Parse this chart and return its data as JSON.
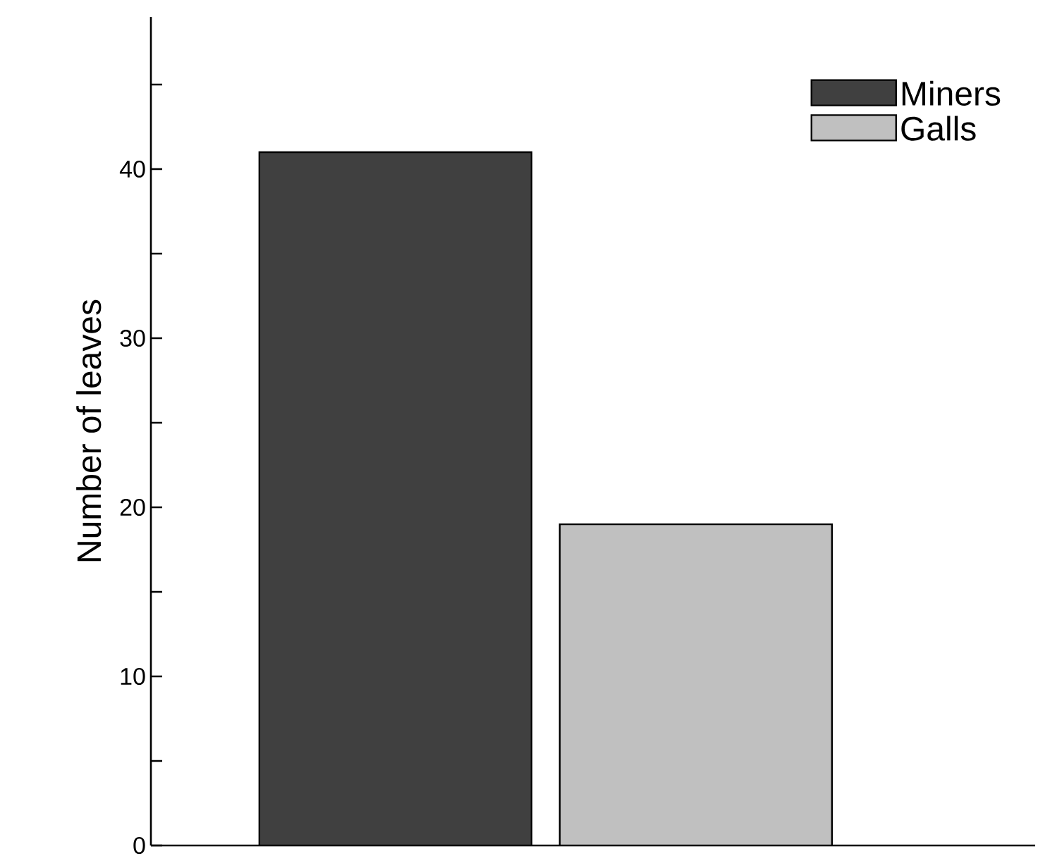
{
  "chart_data": {
    "type": "bar",
    "ylabel": "Number of leaves",
    "categories": [
      null
    ],
    "series": [
      {
        "name": "Miners",
        "color": "#404040",
        "values": [
          41
        ]
      },
      {
        "name": "Galls",
        "color": "#c0c0c0",
        "values": [
          19
        ]
      }
    ],
    "ylim": [
      0,
      49
    ],
    "yticks": [
      0,
      {
        "value": 5,
        "label": null
      },
      10,
      {
        "value": 15,
        "label": null
      },
      20,
      {
        "value": 25,
        "label": null
      },
      30,
      {
        "value": 35,
        "label": null
      },
      40,
      {
        "value": 45,
        "label": null
      }
    ],
    "legend": "top right",
    "grid": false
  }
}
